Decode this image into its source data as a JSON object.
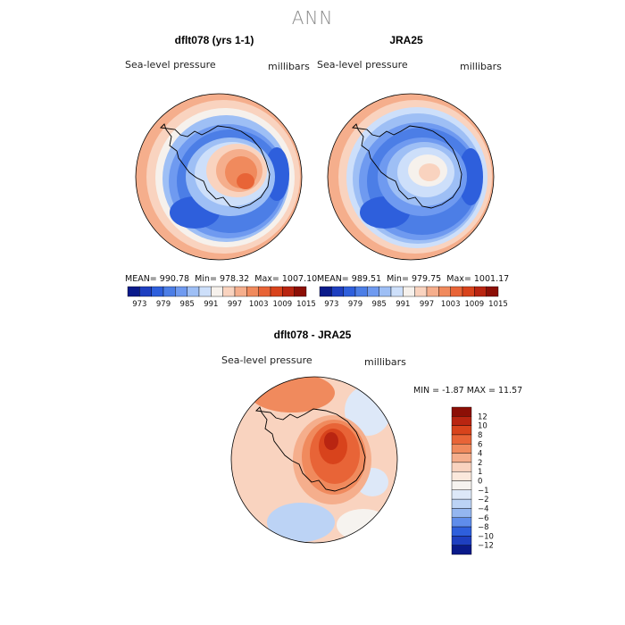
{
  "title": "ANN",
  "panels": [
    {
      "title": "dflt078 (yrs 1-1)",
      "variable": "Sea-level pressure",
      "units": "millibars",
      "stats": {
        "mean_label": "MEAN=",
        "mean": "990.78",
        "min_label": "Min=",
        "min": "978.32",
        "max_label": "Max=",
        "max": "1007.10"
      }
    },
    {
      "title": "JRA25",
      "variable": "Sea-level pressure",
      "units": "millibars",
      "stats": {
        "mean_label": "MEAN=",
        "mean": "989.51",
        "min_label": "Min=",
        "min": "979.75",
        "max_label": "Max=",
        "max": "1001.17"
      }
    },
    {
      "title": "dflt078 - JRA25",
      "variable": "Sea-level pressure",
      "units": "millibars",
      "stats": {
        "min_label": "MIN =",
        "min": "-1.87",
        "max_label": "MAX =",
        "max": "11.57"
      }
    }
  ],
  "chart_data": [
    {
      "type": "heatmap",
      "name": "model",
      "title": "dflt078 (yrs 1-1)",
      "projection": "south-polar-stereographic",
      "colorbar_levels": [
        "973",
        "979",
        "985",
        "991",
        "997",
        "1003",
        "1009",
        "1015"
      ],
      "colorbar_colors": [
        "#0a1a8a",
        "#1e3fc0",
        "#2e5fdc",
        "#4c7ee6",
        "#6f9af0",
        "#9ebff5",
        "#cddffa",
        "#f6f1ec",
        "#f9d3bf",
        "#f5ae8c",
        "#f08a5d",
        "#e86437",
        "#d8431c",
        "#b92511",
        "#8c0f06"
      ],
      "mean": 990.78,
      "min": 978.32,
      "max": 1007.1
    },
    {
      "type": "heatmap",
      "name": "obs",
      "title": "JRA25",
      "projection": "south-polar-stereographic",
      "colorbar_levels": [
        "973",
        "979",
        "985",
        "991",
        "997",
        "1003",
        "1009",
        "1015"
      ],
      "colorbar_colors": [
        "#0a1a8a",
        "#1e3fc0",
        "#2e5fdc",
        "#4c7ee6",
        "#6f9af0",
        "#9ebff5",
        "#cddffa",
        "#f6f1ec",
        "#f9d3bf",
        "#f5ae8c",
        "#f08a5d",
        "#e86437",
        "#d8431c",
        "#b92511",
        "#8c0f06"
      ],
      "mean": 989.51,
      "min": 979.75,
      "max": 1001.17
    },
    {
      "type": "heatmap",
      "name": "difference",
      "title": "dflt078 - JRA25",
      "projection": "south-polar-stereographic",
      "colorbar_levels": [
        "12",
        "10",
        "8",
        "6",
        "4",
        "2",
        "1",
        "0",
        "−1",
        "−2",
        "−4",
        "−6",
        "−8",
        "−10",
        "−12"
      ],
      "colorbar_colors": [
        "#8c0f06",
        "#b92511",
        "#d8431c",
        "#e86437",
        "#f08a5d",
        "#f5ae8c",
        "#f9d3bf",
        "#fbe8dc",
        "#f6f3ef",
        "#dde8f8",
        "#bcd3f5",
        "#94b6f0",
        "#5f8deb",
        "#2e5fdc",
        "#1e3fc0",
        "#0a1a8a"
      ],
      "min": -1.87,
      "max": 11.57
    }
  ]
}
